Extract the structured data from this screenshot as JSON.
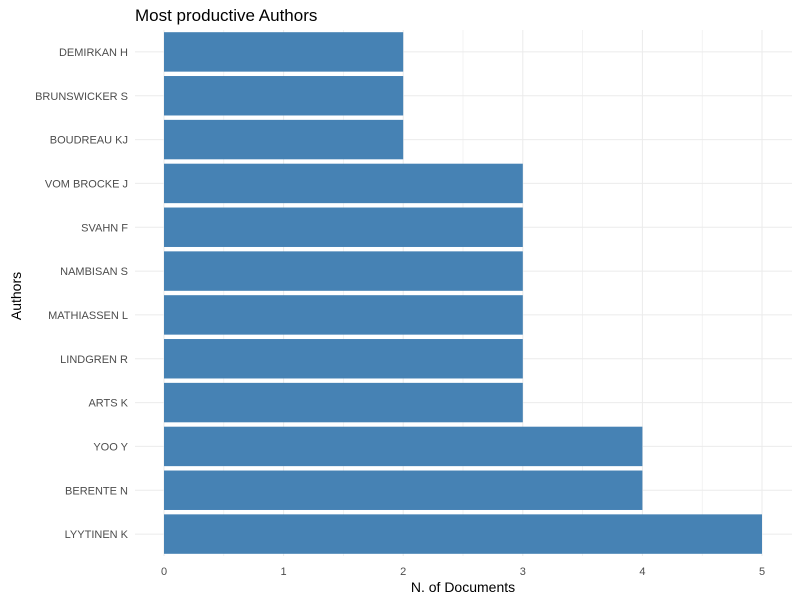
{
  "chart_data": {
    "type": "bar",
    "orientation": "horizontal",
    "title": "Most productive Authors",
    "xlabel": "N. of Documents",
    "ylabel": "Authors",
    "categories": [
      "DEMIRKAN H",
      "BRUNSWICKER S",
      "BOUDREAU KJ",
      "VOM BROCKE J",
      "SVAHN F",
      "NAMBISAN S",
      "MATHIASSEN L",
      "LINDGREN R",
      "ARTS K",
      "YOO Y",
      "BERENTE N",
      "LYYTINEN K"
    ],
    "values": [
      2,
      2,
      2,
      3,
      3,
      3,
      3,
      3,
      3,
      4,
      4,
      5
    ],
    "xlim": [
      0,
      5
    ],
    "xticks": [
      "0",
      "1",
      "2",
      "3",
      "4",
      "5"
    ],
    "grid": true,
    "colors": {
      "bar": "#4682b4",
      "grid": "#ebebeb",
      "tick_text": "#4d4d4d"
    }
  }
}
